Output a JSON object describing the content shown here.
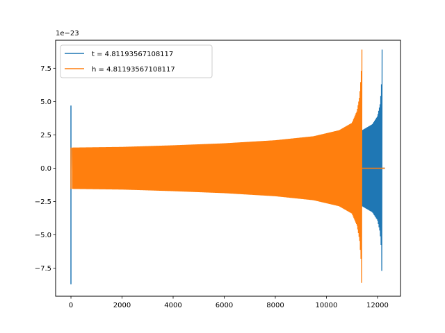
{
  "chart_data": {
    "type": "line",
    "title": "",
    "xlabel": "",
    "ylabel": "",
    "xlim": [
      -600,
      12900
    ],
    "ylim": [
      -9.6,
      9.6
    ],
    "y_offset_label": "1e−23",
    "x_ticks": [
      0,
      2000,
      4000,
      6000,
      8000,
      10000,
      12000
    ],
    "x_tick_labels": [
      "0",
      "2000",
      "4000",
      "6000",
      "8000",
      "10000",
      "12000"
    ],
    "y_ticks": [
      -7.5,
      -5.0,
      -2.5,
      0.0,
      2.5,
      5.0,
      7.5
    ],
    "y_tick_labels": [
      "−7.5",
      "−5.0",
      "−2.5",
      "0.0",
      "2.5",
      "5.0",
      "7.5"
    ],
    "grid": false,
    "legend_position": "top-left",
    "series": [
      {
        "name": "t = 4.81193567108117",
        "color": "#1f77b4",
        "x_range": [
          0,
          12290
        ],
        "merger_x": 12180,
        "initial_spike": {
          "x": 0,
          "max": 4.7,
          "min": -8.7
        },
        "envelope": [
          [
            50,
            1.5
          ],
          [
            2000,
            1.55
          ],
          [
            4000,
            1.65
          ],
          [
            6000,
            1.78
          ],
          [
            8000,
            2.0
          ],
          [
            10000,
            2.35
          ],
          [
            11000,
            2.6
          ],
          [
            11400,
            2.85
          ],
          [
            11800,
            3.3
          ],
          [
            12000,
            3.9
          ],
          [
            12100,
            4.8
          ],
          [
            12150,
            6.0
          ],
          [
            12180,
            8.9
          ]
        ],
        "merger_min": -7.7,
        "post_merger_value": 0.0
      },
      {
        "name": "h = 4.81193567108117",
        "color": "#ff7f0e",
        "x_range": [
          0,
          12290
        ],
        "merger_x": 11390,
        "initial_spike": {
          "x": 0,
          "max": 1.55,
          "min": -1.55
        },
        "envelope": [
          [
            50,
            1.55
          ],
          [
            2000,
            1.6
          ],
          [
            4000,
            1.72
          ],
          [
            6000,
            1.87
          ],
          [
            8000,
            2.1
          ],
          [
            9500,
            2.4
          ],
          [
            10500,
            2.85
          ],
          [
            11000,
            3.4
          ],
          [
            11200,
            4.3
          ],
          [
            11300,
            5.4
          ],
          [
            11360,
            7.0
          ],
          [
            11390,
            8.9
          ]
        ],
        "merger_min": -8.6,
        "post_merger_value": 0.0
      }
    ]
  }
}
